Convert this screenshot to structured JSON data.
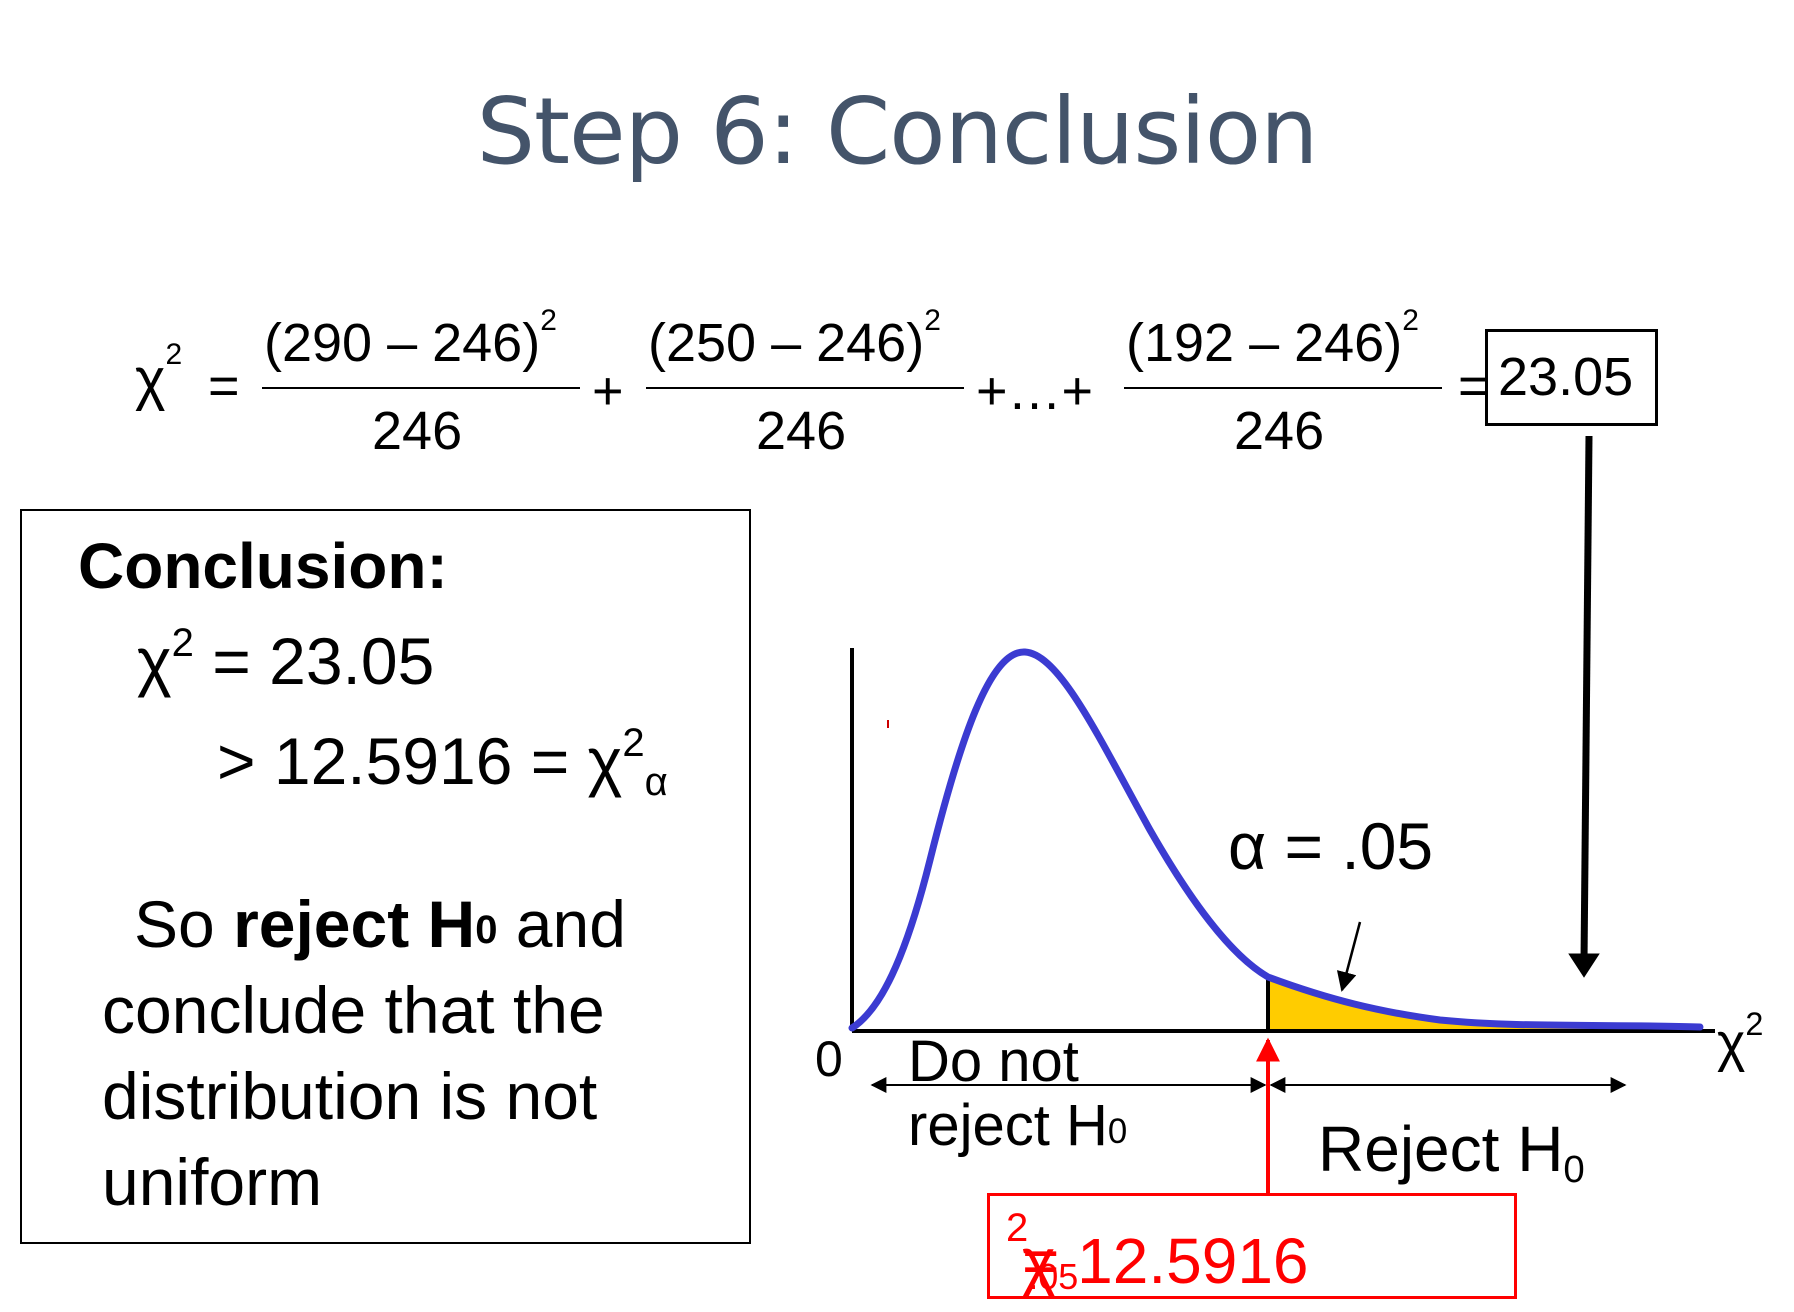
{
  "title": "Step 6: Conclusion",
  "equation": {
    "lhs": "χ",
    "lhs_sup": "2",
    "equals": "=",
    "terms": [
      {
        "numerator": "(290 – 246)",
        "sup": "2",
        "denominator": "246"
      },
      {
        "numerator": "(250 – 246)",
        "sup": "2",
        "denominator": "246"
      },
      {
        "numerator": "(192 – 246)",
        "sup": "2",
        "denominator": "246"
      }
    ],
    "plus": "+",
    "ellipsis": "+…+",
    "result_equals": "=",
    "result": "23.05"
  },
  "conclusion": {
    "heading": "Conclusion:",
    "line1_sym": "χ",
    "line1_sup": "2",
    "line1_rest": " = 23.05",
    "line2_text": "> 12.5916 = χ",
    "line2_sup": "2",
    "line2_sub": "α",
    "body_pre": "So ",
    "body_bold": "reject H",
    "body_bold_sub": "0",
    "body_post": " and conclude that the distribution is not uniform"
  },
  "chart": {
    "origin_label": "0",
    "x_axis_sym": "χ",
    "x_axis_sup": "2",
    "alpha_label": "α = .05",
    "region_left_line1": "Do not",
    "region_left_line2": "reject H",
    "region_left_sub": "0",
    "region_right": "Reject H",
    "region_right_sub": "0",
    "critical_sym": "χ",
    "critical_sup": "2",
    "critical_sub": ".05",
    "critical_rest": " = 12.5916",
    "colors": {
      "curve": "#3b3bd1",
      "tail": "#ffcc00",
      "critical": "#ff0000",
      "title": "#44546a"
    }
  }
}
